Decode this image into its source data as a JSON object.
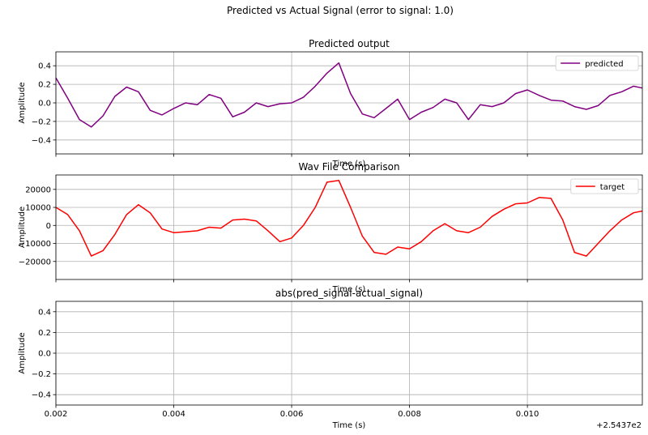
{
  "figure": {
    "suptitle": "Predicted vs Actual Signal (error to signal: 1.0)",
    "x_offset_label": "+2.5437e2"
  },
  "chart_data": [
    {
      "type": "line",
      "title": "Predicted output",
      "xlabel": "Time (s)",
      "ylabel": "Amplitude",
      "xlim": [
        0.002,
        0.01195
      ],
      "ylim": [
        -0.55,
        0.55
      ],
      "yticks": [
        -0.4,
        -0.2,
        0.0,
        0.2,
        0.4
      ],
      "ytick_labels": [
        "−0.4",
        "−0.2",
        "0.0",
        "0.2",
        "0.4"
      ],
      "xticks": [
        0.002,
        0.004,
        0.006,
        0.008,
        0.01
      ],
      "show_xtick_labels": false,
      "grid": true,
      "legend": "top-right",
      "series": [
        {
          "name": "predicted",
          "color": "#800080",
          "x": [
            0.002,
            0.0022,
            0.0024,
            0.0026,
            0.0028,
            0.003,
            0.0032,
            0.0034,
            0.0036,
            0.0038,
            0.004,
            0.0042,
            0.0044,
            0.0046,
            0.0048,
            0.005,
            0.0052,
            0.0054,
            0.0056,
            0.0058,
            0.006,
            0.0062,
            0.0064,
            0.0066,
            0.0068,
            0.007,
            0.0072,
            0.0074,
            0.0076,
            0.0078,
            0.008,
            0.0082,
            0.0084,
            0.0086,
            0.0088,
            0.009,
            0.0092,
            0.0094,
            0.0096,
            0.0098,
            0.01,
            0.0102,
            0.0104,
            0.0106,
            0.0108,
            0.011,
            0.0112,
            0.0114,
            0.0116,
            0.0118,
            0.01195
          ],
          "y": [
            0.27,
            0.05,
            -0.18,
            -0.26,
            -0.14,
            0.07,
            0.17,
            0.12,
            -0.08,
            -0.13,
            -0.06,
            0.0,
            -0.02,
            0.09,
            0.05,
            -0.15,
            -0.1,
            0.0,
            -0.04,
            -0.01,
            0.0,
            0.06,
            0.18,
            0.32,
            0.43,
            0.1,
            -0.12,
            -0.16,
            -0.06,
            0.04,
            -0.18,
            -0.1,
            -0.05,
            0.04,
            0.0,
            -0.18,
            -0.02,
            -0.04,
            0.0,
            0.1,
            0.14,
            0.08,
            0.03,
            0.02,
            -0.04,
            -0.07,
            -0.03,
            0.08,
            0.12,
            0.18,
            0.16
          ]
        }
      ]
    },
    {
      "type": "line",
      "title": "Wav File Comparison",
      "xlabel": "Time (s)",
      "ylabel": "Amplitude",
      "xlim": [
        0.002,
        0.01195
      ],
      "ylim": [
        -30000,
        28000
      ],
      "yticks": [
        -20000,
        -10000,
        0,
        10000,
        20000
      ],
      "ytick_labels": [
        "−20000",
        "−10000",
        "0",
        "10000",
        "20000"
      ],
      "xticks": [
        0.002,
        0.004,
        0.006,
        0.008,
        0.01
      ],
      "show_xtick_labels": false,
      "grid": true,
      "legend": "top-right",
      "series": [
        {
          "name": "target",
          "color": "#ff0000",
          "x": [
            0.002,
            0.0022,
            0.0024,
            0.0026,
            0.0028,
            0.003,
            0.0032,
            0.0034,
            0.0036,
            0.0038,
            0.004,
            0.0042,
            0.0044,
            0.0046,
            0.0048,
            0.005,
            0.0052,
            0.0054,
            0.0056,
            0.0058,
            0.006,
            0.0062,
            0.0064,
            0.0066,
            0.0068,
            0.007,
            0.0072,
            0.0074,
            0.0076,
            0.0078,
            0.008,
            0.0082,
            0.0084,
            0.0086,
            0.0088,
            0.009,
            0.0092,
            0.0094,
            0.0096,
            0.0098,
            0.01,
            0.0102,
            0.0104,
            0.0106,
            0.0108,
            0.011,
            0.0112,
            0.0114,
            0.0116,
            0.0118,
            0.01195
          ],
          "y": [
            10000,
            6000,
            -3000,
            -17000,
            -14000,
            -5000,
            6000,
            11500,
            7000,
            -2000,
            -4000,
            -3500,
            -3000,
            -1000,
            -1500,
            3000,
            3500,
            2500,
            -3000,
            -9000,
            -7000,
            0,
            10000,
            24000,
            25000,
            10000,
            -6000,
            -15000,
            -16000,
            -12000,
            -13000,
            -9000,
            -3000,
            1000,
            -3000,
            -4000,
            -1000,
            5000,
            9000,
            12000,
            12500,
            15500,
            15000,
            3000,
            -15000,
            -17000,
            -10000,
            -3000,
            3000,
            7000,
            8000
          ]
        }
      ]
    },
    {
      "type": "line",
      "title": "abs(pred_signal-actual_signal)",
      "xlabel": "Time (s)",
      "ylabel": "Amplitude",
      "xlim": [
        0.002,
        0.01195
      ],
      "ylim": [
        -0.5,
        0.5
      ],
      "yticks": [
        -0.4,
        -0.2,
        0.0,
        0.2,
        0.4
      ],
      "ytick_labels": [
        "−0.4",
        "−0.2",
        "0.0",
        "0.2",
        "0.4"
      ],
      "xticks": [
        0.002,
        0.004,
        0.006,
        0.008,
        0.01
      ],
      "xtick_labels": [
        "0.002",
        "0.004",
        "0.006",
        "0.008",
        "0.010"
      ],
      "show_xtick_labels": true,
      "grid": true,
      "legend": "none",
      "series": []
    }
  ]
}
